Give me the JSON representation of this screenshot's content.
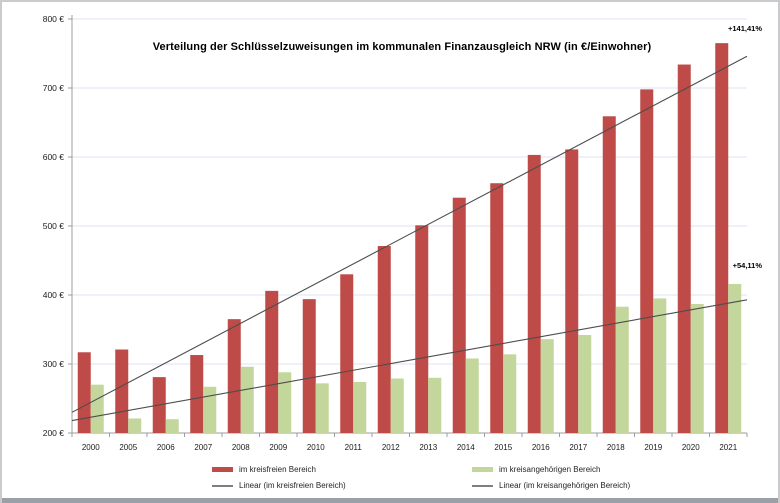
{
  "chart": {
    "title": "Verteilung der Schlüsselzuweisungen im kommunalen Finanzausgleich NRW (in €/Einwohner)",
    "annotations": {
      "kreisfrei": "+141,41%",
      "kreisangehoerig": "+54,11%"
    }
  },
  "legend": {
    "items": [
      {
        "label": "im kreisfreien Bereich",
        "swatch": "bar",
        "color": "#be4b48"
      },
      {
        "label": "im kreisangehörigen Bereich",
        "swatch": "bar",
        "color": "#c3d69b"
      },
      {
        "label": "Linear (im kreisfreien Bereich)",
        "swatch": "line",
        "color": "#7f7f7f"
      },
      {
        "label": "Linear (im kreisangehörigen Bereich)",
        "swatch": "line",
        "color": "#7f7f7f"
      }
    ]
  },
  "chart_data": {
    "type": "bar",
    "title": "Verteilung der Schlüsselzuweisungen im kommunalen Finanzausgleich NRW (in €/Einwohner)",
    "categories": [
      "2000",
      "2005",
      "2006",
      "2007",
      "2008",
      "2009",
      "2010",
      "2011",
      "2012",
      "2013",
      "2014",
      "2015",
      "2016",
      "2017",
      "2018",
      "2019",
      "2020",
      "2021"
    ],
    "series": [
      {
        "key": "kreisfrei",
        "name": "im kreisfreien Bereich",
        "color": "#be4b48",
        "values": [
          317,
          321,
          281,
          313,
          365,
          406,
          394,
          430,
          471,
          501,
          541,
          562,
          603,
          611,
          659,
          698,
          734,
          765
        ]
      },
      {
        "key": "kreisangehoerig",
        "name": "im kreisangehörigen Bereich",
        "color": "#c3d69b",
        "values": [
          270,
          221,
          220,
          267,
          296,
          288,
          272,
          274,
          279,
          280,
          308,
          314,
          336,
          342,
          383,
          395,
          387,
          416
        ]
      }
    ],
    "trendlines": [
      {
        "key": "trend-kreisfrei",
        "name": "Linear (im kreisfreien Bereich)",
        "color": "#4d4d4d",
        "edge_values": [
          230,
          746
        ]
      },
      {
        "key": "trend-kreisangehoerig",
        "name": "Linear (im kreisangehörigen Bereich)",
        "color": "#4d4d4d",
        "edge_values": [
          218,
          393
        ]
      }
    ],
    "growth_labels": {
      "kreisfrei": "+141,41%",
      "kreisangehoerig": "+54,11%"
    },
    "y_axis": {
      "min": 200,
      "max": 800,
      "tick_step": 100,
      "tick_values": [
        200,
        300,
        400,
        500,
        600,
        700,
        800
      ],
      "tick_labels": [
        "200 €",
        "300 €",
        "400 €",
        "500 €",
        "600 €",
        "700 €",
        "800 €"
      ]
    },
    "grid": true,
    "legend_position": "bottom",
    "colors": {
      "gridline": "#dce6f1",
      "axis": "#9c9c9c",
      "tick_text": "#1a1a1a"
    }
  }
}
